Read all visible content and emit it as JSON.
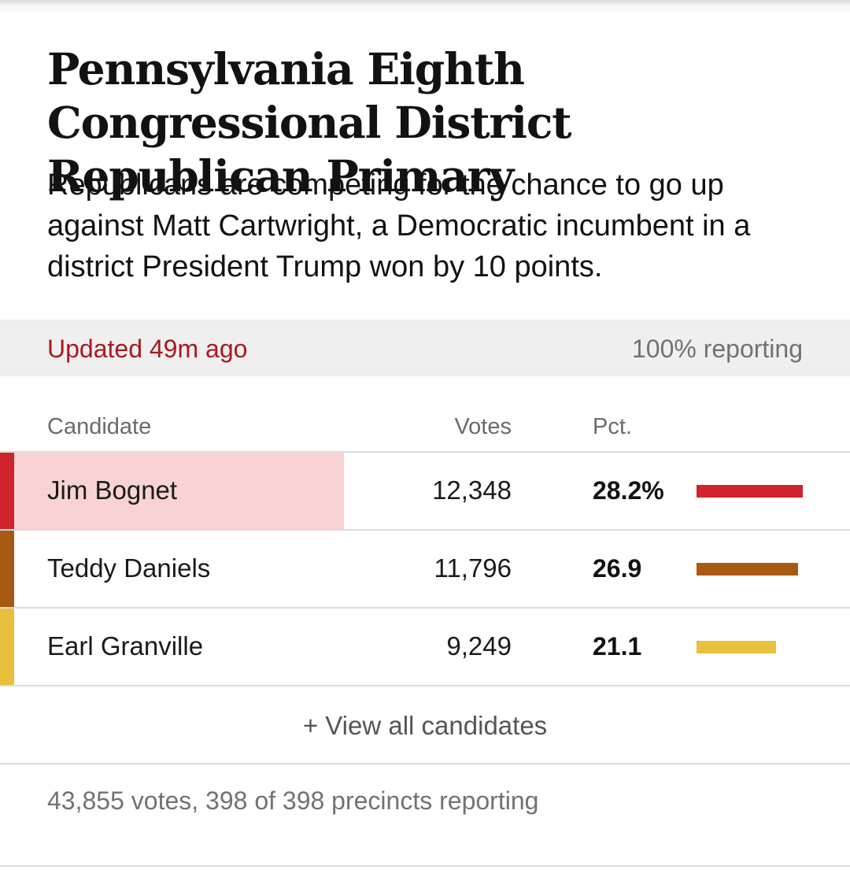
{
  "header": {
    "title": "Pennsylvania Eighth Congressional District Republican Primary",
    "subtitle": "Republicans are competing for the chance to go up against Matt Cartwright, a Democratic incumbent in a district President Trump won by 10 points."
  },
  "status": {
    "updated": "Updated 49m ago",
    "reporting": "100% reporting"
  },
  "table": {
    "columns": {
      "candidate": "Candidate",
      "votes": "Votes",
      "pct": "Pct."
    },
    "rows": [
      {
        "name": "Jim Bognet",
        "votes": "12,348",
        "pct_label": "28.2%",
        "pct_value": 28.2,
        "color": "#d0232b",
        "highlight_color": "#f9d3d3",
        "leader": true
      },
      {
        "name": "Teddy Daniels",
        "votes": "11,796",
        "pct_label": "26.9",
        "pct_value": 26.9,
        "color": "#a85a12",
        "highlight_color": "",
        "leader": false
      },
      {
        "name": "Earl Granville",
        "votes": "9,249",
        "pct_label": "21.1",
        "pct_value": 21.1,
        "color": "#e9c03d",
        "highlight_color": "",
        "leader": false
      }
    ]
  },
  "view_all_label": "+ View all candidates",
  "footer": {
    "summary": "43,855 votes, 398 of 398 precincts reporting"
  }
}
